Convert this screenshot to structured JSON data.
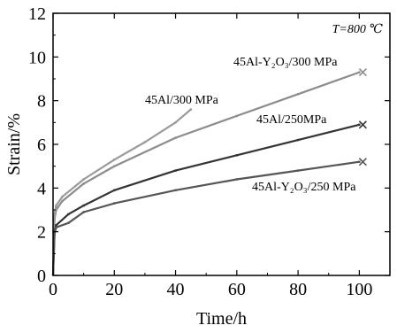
{
  "chart_data": {
    "type": "line",
    "xlabel": "Time/h",
    "ylabel": "Strain/%",
    "xlim": [
      0,
      110
    ],
    "ylim": [
      0,
      12
    ],
    "xticks": [
      0,
      20,
      40,
      60,
      80,
      100
    ],
    "yticks": [
      0,
      2,
      4,
      6,
      8,
      10,
      12
    ],
    "annotation": "T=800 ℃",
    "series": [
      {
        "name": "45Al-Y₂O₃/300 MPa",
        "color": "#8c8c8c",
        "end_marker": "x",
        "points": [
          [
            0,
            0
          ],
          [
            0.5,
            2.6
          ],
          [
            1,
            3.0
          ],
          [
            3,
            3.4
          ],
          [
            10,
            4.2
          ],
          [
            20,
            5.0
          ],
          [
            40,
            6.3
          ],
          [
            60,
            7.3
          ],
          [
            80,
            8.3
          ],
          [
            100,
            9.3
          ]
        ]
      },
      {
        "name": "45Al/300 MPa",
        "color": "#9a9a9a",
        "end_marker": "",
        "points": [
          [
            0,
            0
          ],
          [
            0.5,
            2.8
          ],
          [
            1,
            3.2
          ],
          [
            3,
            3.6
          ],
          [
            10,
            4.4
          ],
          [
            20,
            5.3
          ],
          [
            30,
            6.1
          ],
          [
            40,
            7.0
          ],
          [
            45,
            7.6
          ]
        ]
      },
      {
        "name": "45Al/250MPa",
        "color": "#333333",
        "end_marker": "x",
        "points": [
          [
            0,
            0
          ],
          [
            0.5,
            2.0
          ],
          [
            1,
            2.3
          ],
          [
            5,
            2.8
          ],
          [
            10,
            3.2
          ],
          [
            20,
            3.9
          ],
          [
            40,
            4.8
          ],
          [
            60,
            5.5
          ],
          [
            80,
            6.2
          ],
          [
            100,
            6.9
          ]
        ]
      },
      {
        "name": "45Al-Y₂O₃/250 MPa",
        "color": "#555555",
        "end_marker": "x",
        "points": [
          [
            0,
            0
          ],
          [
            0.5,
            1.9
          ],
          [
            1,
            2.2
          ],
          [
            5,
            2.4
          ],
          [
            10,
            2.9
          ],
          [
            20,
            3.3
          ],
          [
            40,
            3.9
          ],
          [
            60,
            4.4
          ],
          [
            80,
            4.8
          ],
          [
            100,
            5.2
          ]
        ]
      }
    ]
  }
}
